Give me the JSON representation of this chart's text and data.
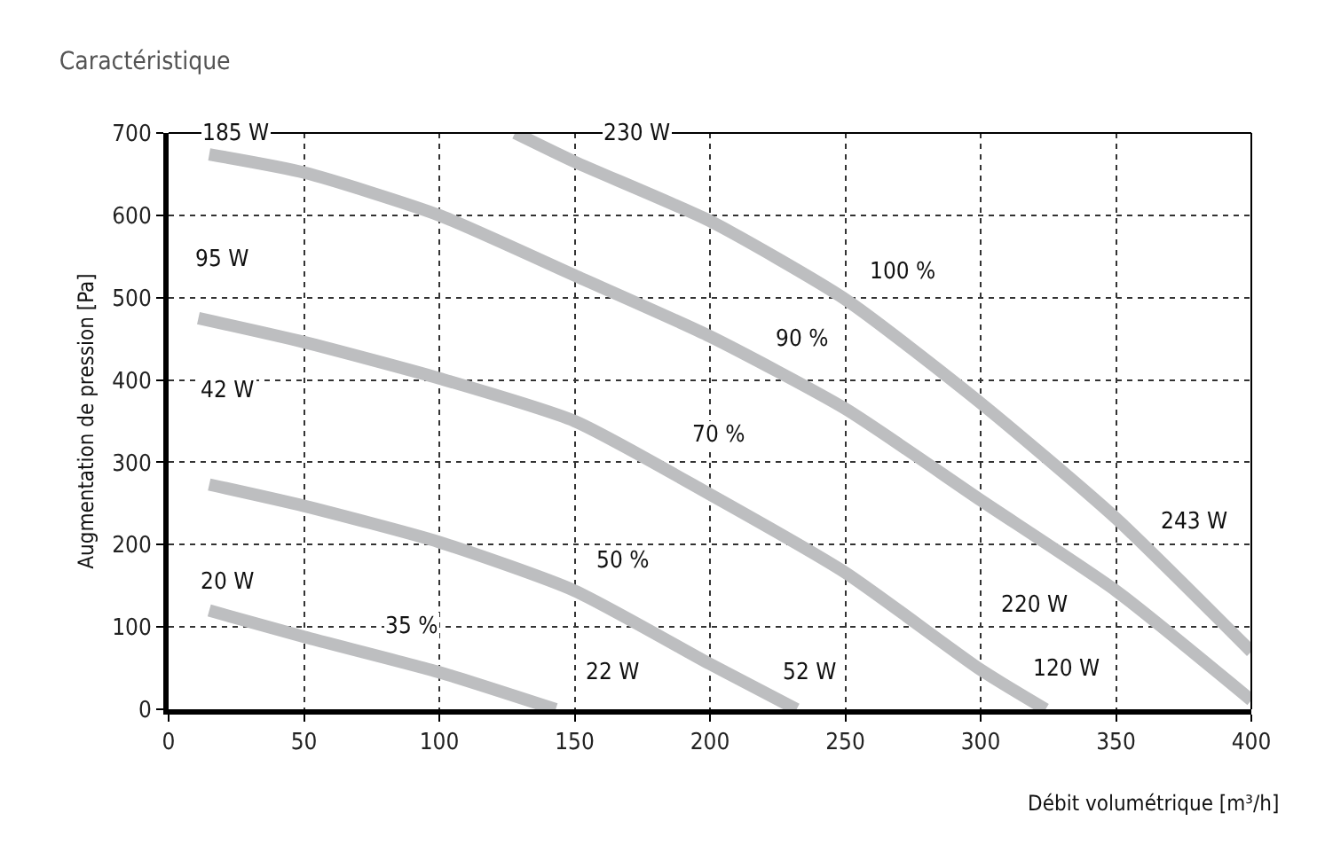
{
  "chart_data": {
    "type": "line",
    "title": "Caractéristique",
    "xlabel": "Débit volumétrique [m³/h]",
    "ylabel": "Augmentation de pression [Pa]",
    "xlim": [
      0,
      400
    ],
    "ylim": [
      0,
      700
    ],
    "xticks": [
      0,
      50,
      100,
      150,
      200,
      250,
      300,
      350,
      400
    ],
    "yticks": [
      0,
      100,
      200,
      300,
      400,
      500,
      600,
      700
    ],
    "grid": true,
    "line_style": "solid",
    "marker": "none",
    "series": [
      {
        "color": "#bdbec0",
        "x": [
          15,
          50,
          100,
          143
        ],
        "values": [
          120,
          88,
          45,
          0
        ]
      },
      {
        "color": "#bdbec0",
        "x": [
          15,
          50,
          100,
          150,
          200,
          232
        ],
        "values": [
          273,
          247,
          203,
          144,
          55,
          0
        ]
      },
      {
        "color": "#bdbec0",
        "x": [
          11,
          50,
          100,
          150,
          200,
          250,
          300,
          324
        ],
        "values": [
          475,
          446,
          402,
          350,
          261,
          166,
          48,
          0
        ]
      },
      {
        "color": "#bdbec0",
        "x": [
          15,
          50,
          100,
          150,
          200,
          250,
          300,
          350,
          400
        ],
        "values": [
          674,
          652,
          600,
          527,
          453,
          365,
          254,
          144,
          11
        ]
      },
      {
        "color": "#bdbec0",
        "x": [
          128,
          150,
          200,
          250,
          300,
          350,
          400
        ],
        "values": [
          700,
          665,
          593,
          498,
          372,
          232,
          70
        ]
      }
    ],
    "annotations": [
      {
        "text": "185 W",
        "x": 25,
        "y": 698
      },
      {
        "text": "230 W",
        "x": 173,
        "y": 698
      },
      {
        "text": "95 W",
        "x": 20,
        "y": 545
      },
      {
        "text": "42 W",
        "x": 22,
        "y": 387
      },
      {
        "text": "20 W",
        "x": 22,
        "y": 153
      },
      {
        "text": "35 %",
        "x": 90,
        "y": 100
      },
      {
        "text": "50 %",
        "x": 168,
        "y": 180
      },
      {
        "text": "70 %",
        "x": 203,
        "y": 332
      },
      {
        "text": "90 %",
        "x": 234,
        "y": 450
      },
      {
        "text": "100 %",
        "x": 271,
        "y": 531
      },
      {
        "text": "22 W",
        "x": 164,
        "y": 44
      },
      {
        "text": "52 W",
        "x": 237,
        "y": 44
      },
      {
        "text": "120 W",
        "x": 332,
        "y": 48
      },
      {
        "text": "220 W",
        "x": 320,
        "y": 125
      },
      {
        "text": "243 W",
        "x": 379,
        "y": 228
      }
    ]
  }
}
